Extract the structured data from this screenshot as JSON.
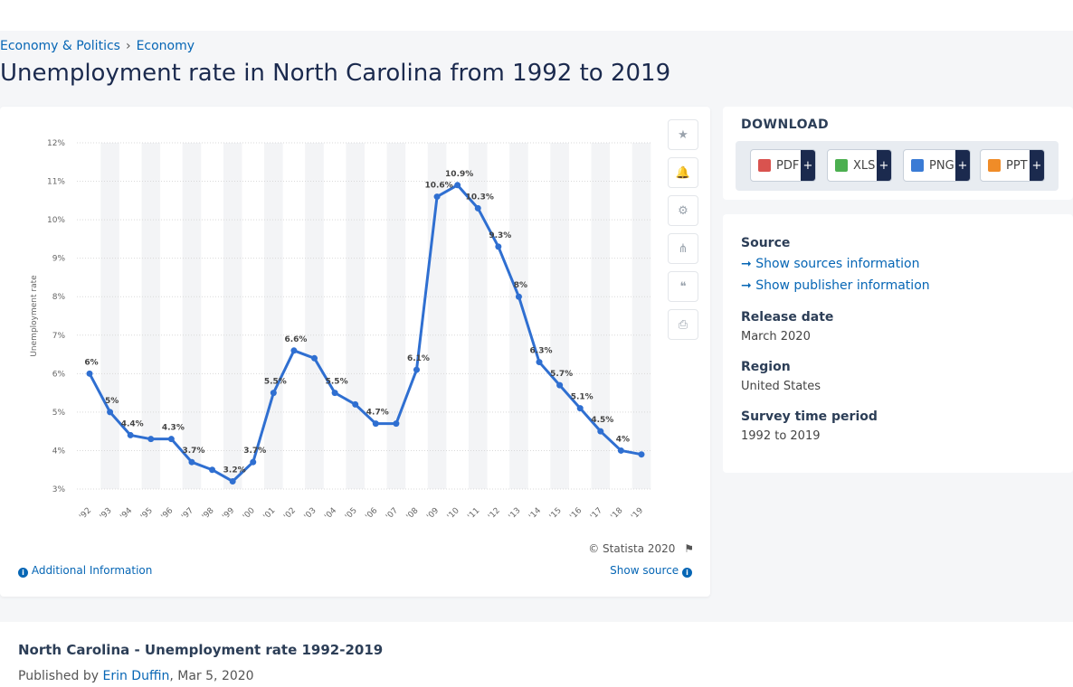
{
  "breadcrumb": [
    "Economy & Politics",
    "Economy"
  ],
  "title": "Unemployment rate in North Carolina from 1992 to 2019",
  "tools": [
    {
      "icon": "star-icon",
      "glyph": "★"
    },
    {
      "icon": "bell-icon",
      "glyph": "🔔"
    },
    {
      "icon": "gear-icon",
      "glyph": "⚙"
    },
    {
      "icon": "share-icon",
      "glyph": "⋔"
    },
    {
      "icon": "quote-icon",
      "glyph": "❝"
    },
    {
      "icon": "print-icon",
      "glyph": "⎙"
    }
  ],
  "copyright": "© Statista 2020",
  "additional_info": "Additional Information",
  "show_source": "Show source",
  "download": {
    "title": "DOWNLOAD",
    "buttons": [
      {
        "label": "PDF",
        "color": "#d9534f"
      },
      {
        "label": "XLS",
        "color": "#4caf50"
      },
      {
        "label": "PNG",
        "color": "#3a7bd5"
      },
      {
        "label": "PPT",
        "color": "#f08c28"
      }
    ],
    "plus": "+"
  },
  "meta": {
    "source_h": "Source",
    "sources_link": "Show sources information",
    "publisher_link": "Show publisher information",
    "release_h": "Release date",
    "release_v": "March 2020",
    "region_h": "Region",
    "region_v": "United States",
    "period_h": "Survey time period",
    "period_v": "1992 to 2019"
  },
  "bottom": {
    "title": "North Carolina - Unemployment rate 1992-2019",
    "published_prefix": "Published by",
    "author": "Erin Duffin",
    "date": ", Mar 5, 2020"
  },
  "colors": {
    "line": "#2f6fd1",
    "band": "#f3f4f6",
    "grid": "#d9d9d9"
  },
  "chart_data": {
    "type": "line",
    "title": "",
    "xlabel": "",
    "ylabel": "Unemployment rate",
    "x": [
      "'92",
      "'93",
      "'94",
      "'95",
      "'96",
      "'97",
      "'98",
      "'99",
      "'00",
      "'01",
      "'02",
      "'03",
      "'04",
      "'05",
      "'06",
      "'07",
      "'08",
      "'09",
      "'10",
      "'11",
      "'12",
      "'13",
      "'14",
      "'15",
      "'16",
      "'17",
      "'18",
      "'19"
    ],
    "series": [
      {
        "values": [
          6,
          5,
          4.4,
          4.3,
          4.3,
          3.7,
          3.5,
          3.2,
          3.7,
          5.5,
          6.6,
          6.4,
          5.5,
          5.2,
          4.7,
          4.7,
          6.1,
          10.6,
          10.9,
          10.3,
          9.3,
          8,
          6.3,
          5.7,
          5.1,
          4.5,
          4,
          3.9
        ]
      }
    ],
    "data_labels": {
      "0": "6%",
      "1": "5%",
      "2": "4.4%",
      "4": "4.3%",
      "5": "3.7%",
      "7": "3.2%",
      "8": "3.7%",
      "9": "5.5%",
      "10": "6.6%",
      "12": "5.5%",
      "14": "4.7%",
      "16": "6.1%",
      "17": "10.6%",
      "18": "10.9%",
      "19": "10.3%",
      "20": "9.3%",
      "21": "8%",
      "22": "6.3%",
      "23": "5.7%",
      "24": "5.1%",
      "25": "4.5%",
      "26": "4%"
    },
    "yticks": [
      "3%",
      "4%",
      "5%",
      "6%",
      "7%",
      "8%",
      "9%",
      "10%",
      "11%",
      "12%"
    ],
    "ylim": [
      3,
      12
    ],
    "grid": true,
    "legend": "none"
  }
}
